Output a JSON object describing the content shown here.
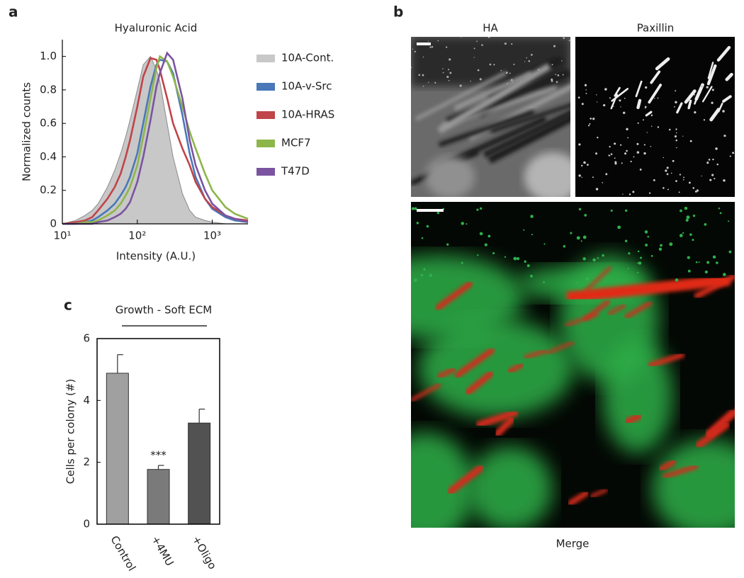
{
  "panel_labels": [
    "a",
    "b",
    "c"
  ],
  "images": {
    "titles": [
      "HA",
      "Paxillin"
    ],
    "caption": "Merge"
  },
  "chart_data": [
    {
      "type": "line",
      "title": "Hyaluronic Acid",
      "x_label": "Intensity (A.U.)",
      "y_label": "Normalized counts",
      "xscale": "log",
      "xlim": [
        10,
        3000
      ],
      "xticks": [
        {
          "value": 10,
          "label": "10¹"
        },
        {
          "value": 100,
          "label": "10²"
        },
        {
          "value": 1000,
          "label": "10³"
        }
      ],
      "ylim": [
        0,
        1.1
      ],
      "yticks": [
        0,
        0.2,
        0.4,
        0.6,
        0.8,
        {
          "value": 1,
          "label": "1.0"
        }
      ],
      "legend": "right",
      "x": [
        10,
        15,
        20,
        25,
        30,
        40,
        50,
        60,
        70,
        80,
        100,
        120,
        150,
        180,
        200,
        250,
        300,
        400,
        500,
        600,
        800,
        1000,
        1500,
        2000,
        3000
      ],
      "series": [
        {
          "name": "10A-Cont.",
          "color": "#c8c8c8",
          "filled": true,
          "values": [
            0,
            0.02,
            0.05,
            0.08,
            0.12,
            0.22,
            0.32,
            0.42,
            0.52,
            0.62,
            0.8,
            0.95,
            1.0,
            0.92,
            0.85,
            0.6,
            0.4,
            0.18,
            0.08,
            0.04,
            0.02,
            0.01,
            0,
            0,
            0
          ]
        },
        {
          "name": "10A-v-Src",
          "color": "#4a78b8",
          "values": [
            0,
            0,
            0.01,
            0.02,
            0.04,
            0.08,
            0.12,
            0.17,
            0.22,
            0.28,
            0.42,
            0.6,
            0.82,
            0.95,
            0.98,
            0.97,
            0.9,
            0.65,
            0.42,
            0.28,
            0.15,
            0.09,
            0.04,
            0.02,
            0.01
          ]
        },
        {
          "name": "10A-HRAS",
          "color": "#c0444a",
          "values": [
            0,
            0.01,
            0.02,
            0.04,
            0.08,
            0.15,
            0.22,
            0.3,
            0.4,
            0.5,
            0.7,
            0.88,
            0.99,
            0.98,
            0.92,
            0.75,
            0.6,
            0.45,
            0.35,
            0.25,
            0.15,
            0.1,
            0.05,
            0.03,
            0.02
          ]
        },
        {
          "name": "MCF7",
          "color": "#8db64a",
          "values": [
            0,
            0,
            0.01,
            0.01,
            0.02,
            0.05,
            0.08,
            0.12,
            0.17,
            0.22,
            0.35,
            0.52,
            0.75,
            0.93,
            1.0,
            0.97,
            0.88,
            0.7,
            0.55,
            0.45,
            0.3,
            0.2,
            0.1,
            0.06,
            0.03
          ]
        },
        {
          "name": "T47D",
          "color": "#7a54a0",
          "values": [
            0,
            0,
            0,
            0,
            0.01,
            0.02,
            0.04,
            0.06,
            0.09,
            0.13,
            0.25,
            0.4,
            0.62,
            0.82,
            0.9,
            1.02,
            0.98,
            0.75,
            0.5,
            0.35,
            0.2,
            0.12,
            0.05,
            0.03,
            0.01
          ]
        }
      ]
    },
    {
      "type": "bar",
      "title": "Growth - Soft ECM",
      "y_label": "Cells per colony (#)",
      "categories": [
        "Control",
        "+4MU",
        "+Oligo"
      ],
      "values": [
        4.88,
        1.77,
        3.27
      ],
      "errors": [
        0.6,
        0.13,
        0.45
      ],
      "colors": [
        "#a0a0a0",
        "#7a7a7a",
        "#525252"
      ],
      "annotations": [
        {
          "text": "***",
          "x": "+4MU"
        }
      ],
      "ylim": [
        0,
        6
      ],
      "yticks": [
        0,
        2,
        4,
        6
      ]
    }
  ]
}
